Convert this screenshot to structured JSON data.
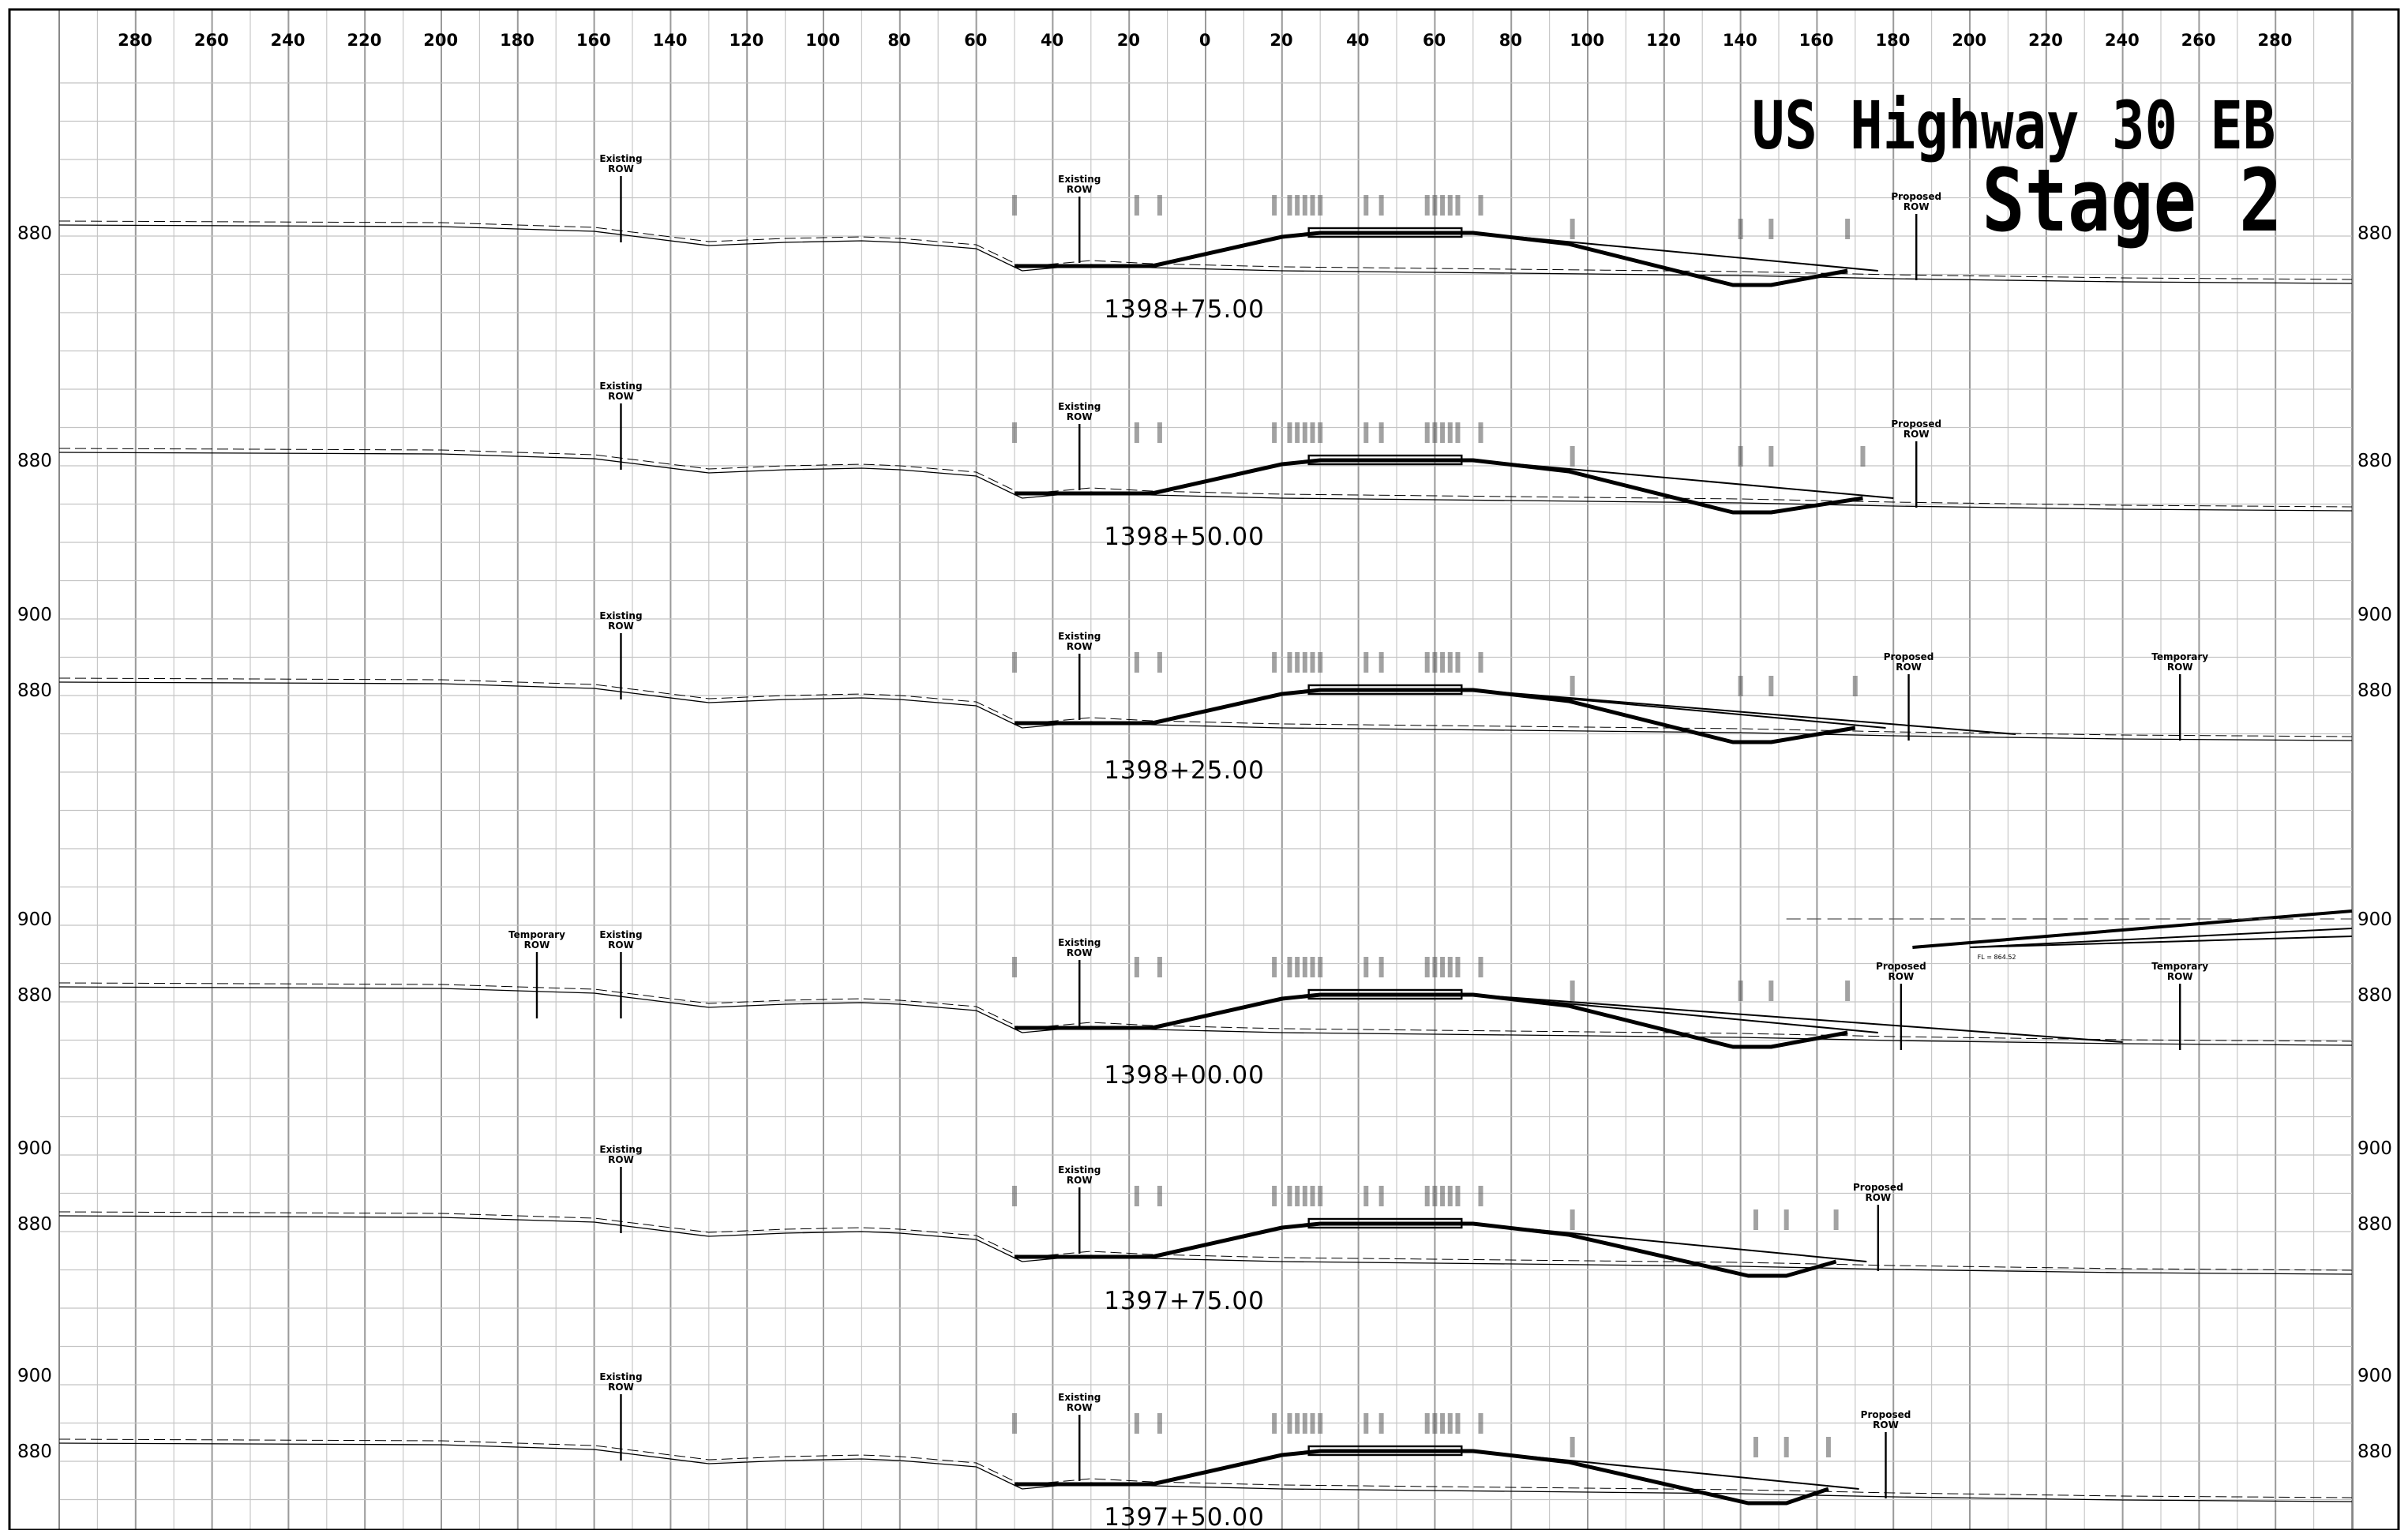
{
  "title": {
    "line1": "US Highway 30 EB",
    "line2": "Stage 2"
  },
  "offset_axis": {
    "ticks": [
      "280",
      "260",
      "240",
      "220",
      "200",
      "180",
      "160",
      "140",
      "120",
      "100",
      "80",
      "60",
      "40",
      "20",
      "0",
      "20",
      "40",
      "60",
      "80",
      "100",
      "120",
      "140",
      "160",
      "180",
      "200",
      "220",
      "240",
      "260",
      "280"
    ]
  },
  "sections": [
    {
      "station": "1398+75.00",
      "elev_labels_left": [
        "880"
      ],
      "elev_labels_right": [
        "880"
      ],
      "row_labels": [
        {
          "line1": "Existing",
          "line2": "ROW"
        },
        {
          "line1": "Existing",
          "line2": "ROW"
        },
        {
          "line1": "Proposed",
          "line2": "ROW"
        }
      ]
    },
    {
      "station": "1398+50.00",
      "elev_labels_left": [
        "880"
      ],
      "elev_labels_right": [
        "880"
      ],
      "row_labels": [
        {
          "line1": "Existing",
          "line2": "ROW"
        },
        {
          "line1": "Existing",
          "line2": "ROW"
        },
        {
          "line1": "Proposed",
          "line2": "ROW"
        }
      ]
    },
    {
      "station": "1398+25.00",
      "elev_labels_left": [
        "900",
        "880"
      ],
      "elev_labels_right": [
        "900",
        "880"
      ],
      "row_labels": [
        {
          "line1": "Existing",
          "line2": "ROW"
        },
        {
          "line1": "Existing",
          "line2": "ROW"
        },
        {
          "line1": "Proposed",
          "line2": "ROW"
        },
        {
          "line1": "Temporary",
          "line2": "ROW"
        }
      ]
    },
    {
      "station": "1398+00.00",
      "elev_labels_left": [
        "900",
        "880"
      ],
      "elev_labels_right": [
        "900",
        "880"
      ],
      "row_labels": [
        {
          "line1": "Temporary",
          "line2": "ROW"
        },
        {
          "line1": "Existing",
          "line2": "ROW"
        },
        {
          "line1": "Existing",
          "line2": "ROW"
        },
        {
          "line1": "Proposed",
          "line2": "ROW"
        },
        {
          "line1": "Temporary",
          "line2": "ROW"
        }
      ],
      "flowline_note": "FL = 864.52"
    },
    {
      "station": "1397+75.00",
      "elev_labels_left": [
        "900",
        "880"
      ],
      "elev_labels_right": [
        "900",
        "880"
      ],
      "row_labels": [
        {
          "line1": "Existing",
          "line2": "ROW"
        },
        {
          "line1": "Existing",
          "line2": "ROW"
        },
        {
          "line1": "Proposed",
          "line2": "ROW"
        }
      ]
    },
    {
      "station": "1397+50.00",
      "elev_labels_left": [
        "900",
        "880"
      ],
      "elev_labels_right": [
        "900",
        "880"
      ],
      "row_labels": [
        {
          "line1": "Existing",
          "line2": "ROW"
        },
        {
          "line1": "Existing",
          "line2": "ROW"
        },
        {
          "line1": "Proposed",
          "line2": "ROW"
        }
      ]
    }
  ]
}
